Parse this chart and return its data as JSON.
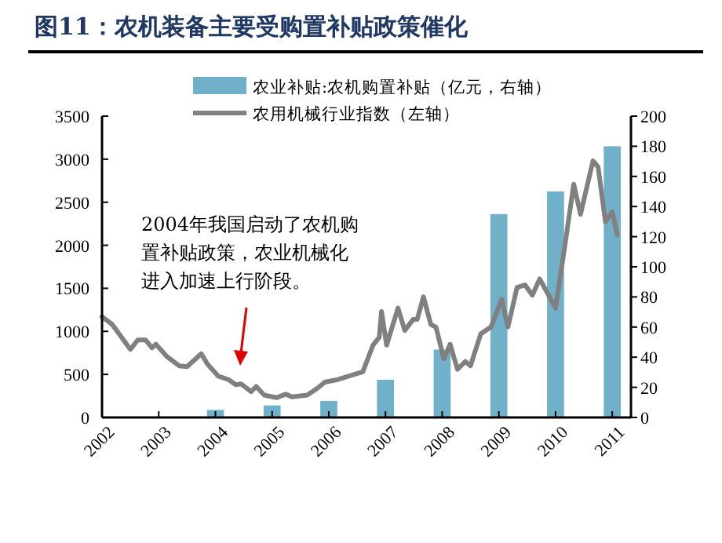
{
  "chart_data": {
    "type": "line",
    "title": "图11：农机装备主要受购置补贴政策催化",
    "xlim": [
      2002,
      2011.33
    ],
    "xticks": [
      2002,
      2003,
      2004,
      2005,
      2006,
      2007,
      2008,
      2009,
      2010,
      2011
    ],
    "ylim": [
      0,
      3500
    ],
    "yticks": [
      0,
      500,
      1000,
      1500,
      2000,
      2500,
      3000,
      3500
    ],
    "y2lim": [
      0,
      200
    ],
    "y2ticks": [
      0,
      20,
      40,
      60,
      80,
      100,
      120,
      140,
      160,
      180,
      200
    ],
    "legend": "top right",
    "annotations": [
      "2004年我国启动了农机购置补贴政策，农业机械化进入加速上行阶段。"
    ],
    "series": [
      {
        "name": "农业补贴:农机购置补贴（亿元，右轴）",
        "type": "bar",
        "axis": "y2",
        "color": "#70b0c9",
        "x": [
          2004,
          2005,
          2006,
          2007,
          2008,
          2009,
          2010,
          2011
        ],
        "values": [
          5,
          8,
          11,
          25,
          45,
          135,
          150,
          180
        ]
      },
      {
        "name": "农用机械行业指数（左轴）",
        "color": "#808080",
        "x": [
          2002.0,
          2002.18,
          2002.5,
          2002.63,
          2002.77,
          2002.88,
          2002.95,
          2003.14,
          2003.36,
          2003.5,
          2003.75,
          2003.86,
          2004.05,
          2004.23,
          2004.36,
          2004.45,
          2004.63,
          2004.72,
          2004.86,
          2005.08,
          2005.24,
          2005.35,
          2005.62,
          2005.8,
          2005.93,
          2006.16,
          2006.45,
          2006.6,
          2006.78,
          2006.89,
          2006.93,
          2007.02,
          2007.22,
          2007.34,
          2007.49,
          2007.56,
          2007.67,
          2007.8,
          2007.89,
          2008.03,
          2008.14,
          2008.27,
          2008.41,
          2008.5,
          2008.68,
          2008.86,
          2009.05,
          2009.16,
          2009.32,
          2009.46,
          2009.59,
          2009.72,
          2010.0,
          2010.17,
          2010.32,
          2010.44,
          2010.66,
          2010.75,
          2010.88,
          2011.0,
          2011.09
        ],
        "values": [
          1170,
          1080,
          790,
          900,
          900,
          810,
          850,
          710,
          600,
          590,
          740,
          620,
          480,
          440,
          380,
          390,
          300,
          360,
          260,
          230,
          270,
          240,
          260,
          340,
          410,
          440,
          500,
          530,
          840,
          930,
          1230,
          840,
          1270,
          1010,
          1140,
          1140,
          1400,
          1080,
          1050,
          680,
          850,
          560,
          650,
          600,
          970,
          1050,
          1370,
          1050,
          1510,
          1540,
          1420,
          1610,
          1270,
          2020,
          2710,
          2360,
          2980,
          2910,
          2270,
          2390,
          2120
        ]
      }
    ]
  }
}
